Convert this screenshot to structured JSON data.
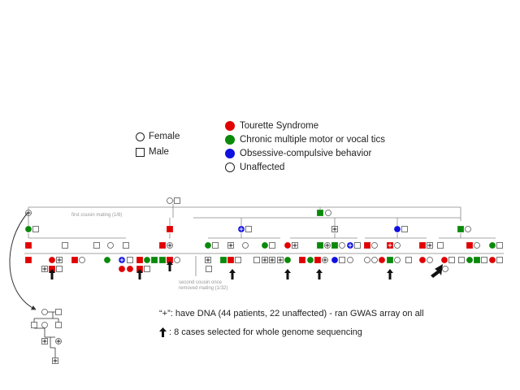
{
  "legend": {
    "female": "Female",
    "male": "Male",
    "conditions": [
      {
        "label": "Tourette Syndrome",
        "color": "#e00000"
      },
      {
        "label": "Chronic multiple motor or vocal tics",
        "color": "#0a8a0a"
      },
      {
        "label": "Obsessive-compulsive behavior",
        "color": "#1010e0"
      },
      {
        "label": "Unaffected",
        "color": "#ffffff"
      }
    ]
  },
  "annotations": {
    "first_cousin": "first cousin mating (1/8)",
    "second_cousin_line1": "second cousin once",
    "second_cousin_line2": "removed mating (1/32)"
  },
  "notes": {
    "dna": "“+”: have DNA (44 patients, 22 unaffected) - ran GWAS array on all",
    "wgs": ": 8 cases selected for whole genome sequencing"
  },
  "colors": {
    "ts": "#e00000",
    "tics": "#0a8a0a",
    "ocb": "#1010e0",
    "line": "#888888"
  }
}
